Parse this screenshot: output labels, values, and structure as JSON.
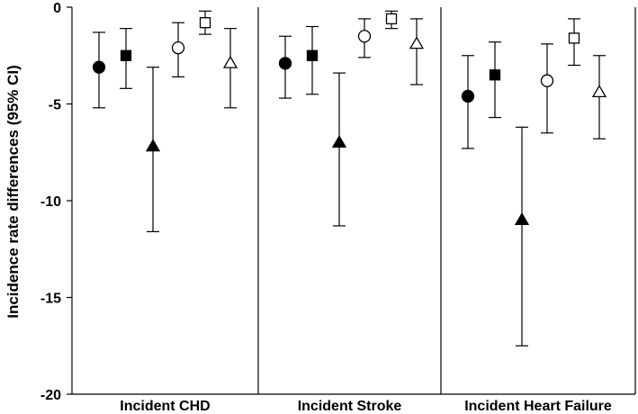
{
  "chart_data": {
    "type": "scatter",
    "subtype": "forest-plot-with-error-bars",
    "title": "",
    "xlabel": "",
    "ylabel": "Incidence rate differences (95% CI)",
    "ylim": [
      -20,
      0
    ],
    "yticks": [
      0,
      -5,
      -10,
      -15,
      -20
    ],
    "ytick_labels": [
      "0",
      "-5",
      "-10",
      "-15",
      "-20"
    ],
    "grid": false,
    "legend": "none",
    "groups": [
      {
        "label": "Incident CHD",
        "points": [
          {
            "marker": "filled-circle",
            "y": -3.1,
            "lower": -5.2,
            "upper": -1.3
          },
          {
            "marker": "filled-square",
            "y": -2.5,
            "lower": -4.2,
            "upper": -1.1
          },
          {
            "marker": "filled-triangle",
            "y": -7.2,
            "lower": -11.6,
            "upper": -3.1
          },
          {
            "marker": "open-circle",
            "y": -2.1,
            "lower": -3.6,
            "upper": -0.8
          },
          {
            "marker": "open-square",
            "y": -0.8,
            "lower": -1.4,
            "upper": -0.2
          },
          {
            "marker": "open-triangle",
            "y": -2.9,
            "lower": -5.2,
            "upper": -1.1
          }
        ]
      },
      {
        "label": "Incident Stroke",
        "points": [
          {
            "marker": "filled-circle",
            "y": -2.9,
            "lower": -4.7,
            "upper": -1.5
          },
          {
            "marker": "filled-square",
            "y": -2.5,
            "lower": -4.5,
            "upper": -1.0
          },
          {
            "marker": "filled-triangle",
            "y": -7.0,
            "lower": -11.3,
            "upper": -3.4
          },
          {
            "marker": "open-circle",
            "y": -1.5,
            "lower": -2.6,
            "upper": -0.6
          },
          {
            "marker": "open-square",
            "y": -0.6,
            "lower": -1.1,
            "upper": -0.2
          },
          {
            "marker": "open-triangle",
            "y": -1.9,
            "lower": -4.0,
            "upper": -0.6
          }
        ]
      },
      {
        "label": "Incident Heart Failure",
        "points": [
          {
            "marker": "filled-circle",
            "y": -4.6,
            "lower": -7.3,
            "upper": -2.5
          },
          {
            "marker": "filled-square",
            "y": -3.5,
            "lower": -5.7,
            "upper": -1.8
          },
          {
            "marker": "filled-triangle",
            "y": -11.0,
            "lower": -17.5,
            "upper": -6.2
          },
          {
            "marker": "open-circle",
            "y": -3.8,
            "lower": -6.5,
            "upper": -1.9
          },
          {
            "marker": "open-square",
            "y": -1.6,
            "lower": -3.0,
            "upper": -0.6
          },
          {
            "marker": "open-triangle",
            "y": -4.4,
            "lower": -6.8,
            "upper": -2.5
          }
        ]
      }
    ]
  }
}
